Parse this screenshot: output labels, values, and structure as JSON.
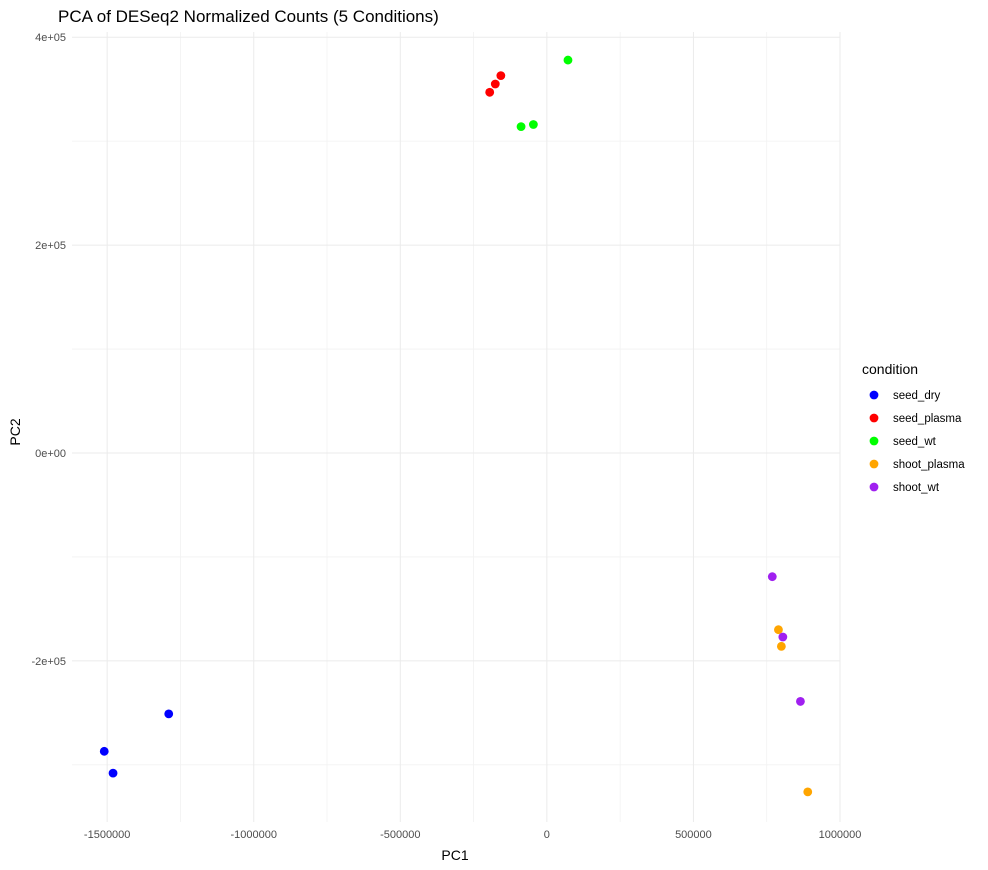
{
  "chart_data": {
    "type": "scatter",
    "title": "PCA of DESeq2 Normalized Counts (5 Conditions)",
    "xlabel": "PC1",
    "ylabel": "PC2",
    "xlim": [
      -1620000,
      1000000
    ],
    "ylim": [
      -355000,
      405000
    ],
    "x_ticks": [
      -1500000,
      -1000000,
      -500000,
      0,
      500000,
      1000000
    ],
    "x_tick_labels": [
      "-1500000",
      "-1000000",
      "-500000",
      "0",
      "500000",
      "1000000"
    ],
    "y_ticks": [
      -200000,
      0,
      200000,
      400000
    ],
    "y_tick_labels": [
      "-2e+05",
      "0e+00",
      "2e+05",
      "4e+05"
    ],
    "grid": true,
    "legend": {
      "title": "condition",
      "position": "right"
    },
    "series": [
      {
        "name": "seed_dry",
        "color": "#0000FF",
        "points": [
          {
            "x": -1510000,
            "y": -287000
          },
          {
            "x": -1480000,
            "y": -308000
          },
          {
            "x": -1290000,
            "y": -251000
          }
        ]
      },
      {
        "name": "seed_plasma",
        "color": "#FF0000",
        "points": [
          {
            "x": -195000,
            "y": 347000
          },
          {
            "x": -176000,
            "y": 355000
          },
          {
            "x": -157000,
            "y": 363000
          }
        ]
      },
      {
        "name": "seed_wt",
        "color": "#00FF00",
        "points": [
          {
            "x": -88000,
            "y": 314000
          },
          {
            "x": -46000,
            "y": 316000
          },
          {
            "x": 72000,
            "y": 378000
          }
        ]
      },
      {
        "name": "shoot_plasma",
        "color": "#FFA500",
        "points": [
          {
            "x": 790000,
            "y": -170000
          },
          {
            "x": 800000,
            "y": -186000
          },
          {
            "x": 890000,
            "y": -326000
          }
        ]
      },
      {
        "name": "shoot_wt",
        "color": "#A020F0",
        "points": [
          {
            "x": 769000,
            "y": -119000
          },
          {
            "x": 805000,
            "y": -177000
          },
          {
            "x": 865000,
            "y": -239000
          }
        ]
      }
    ]
  }
}
